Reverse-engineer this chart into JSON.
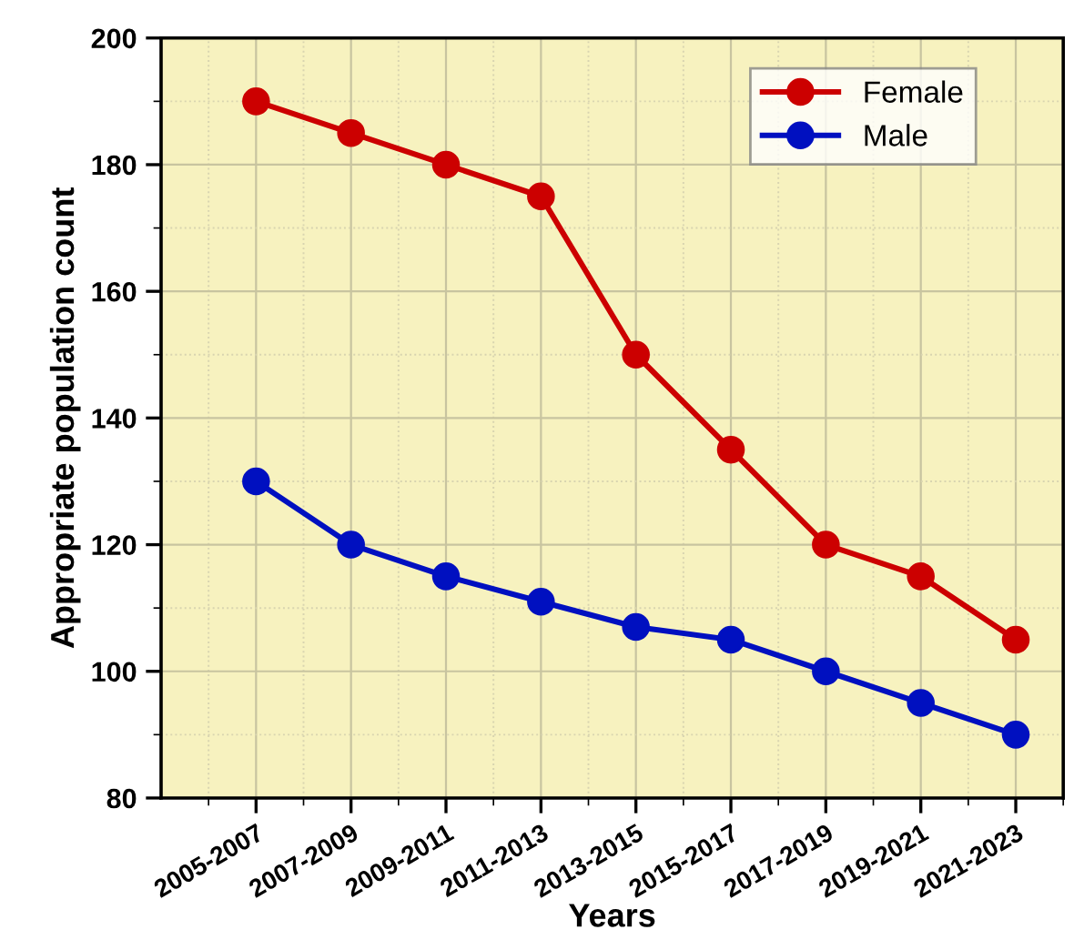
{
  "chart_data": {
    "type": "line",
    "xlabel": "Years",
    "ylabel": "Appropriate population count",
    "categories": [
      "2005-2007",
      "2007-2009",
      "2009-2011",
      "2011-2013",
      "2013-2015",
      "2015-2017",
      "2017-2019",
      "2019-2021",
      "2021-2023"
    ],
    "series": [
      {
        "name": "Female",
        "color": "#cc0000",
        "values": [
          190,
          185,
          180,
          175,
          150,
          135,
          120,
          115,
          105
        ]
      },
      {
        "name": "Male",
        "color": "#0010c0",
        "values": [
          130,
          120,
          115,
          111,
          107,
          105,
          100,
          95,
          90
        ]
      }
    ],
    "ylim": [
      80,
      200
    ],
    "yticks": [
      80,
      100,
      120,
      140,
      160,
      180,
      200
    ],
    "grid": true,
    "legend": "top right",
    "marker": "circle",
    "line_style": "solid"
  }
}
